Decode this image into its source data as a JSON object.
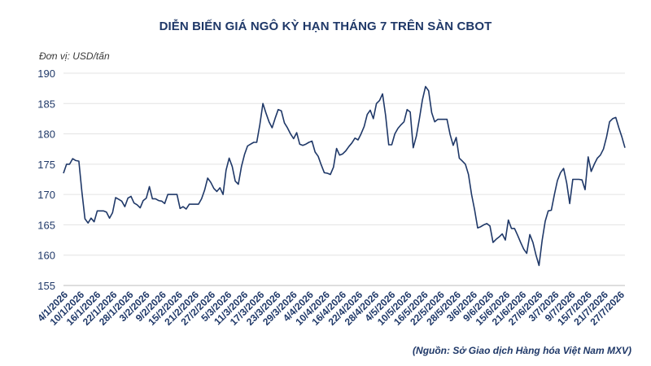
{
  "title": "DIỄN BIẾN GIÁ NGÔ KỲ HẠN THÁNG 7 TRÊN SÀN CBOT",
  "unit_label": "Đơn vị: USD/tấn",
  "source": "(Nguồn: Sở Giao dịch Hàng hóa Việt Nam MXV)",
  "colors": {
    "line": "#1f3868",
    "grid": "#e3e3e3",
    "text": "#1f3868"
  },
  "chart_data": {
    "type": "line",
    "title": "DIỄN BIẾN GIÁ NGÔ KỲ HẠN THÁNG 7 TRÊN SÀN CBOT",
    "ylabel": "Đơn vị: USD/tấn",
    "ylim": [
      155,
      190
    ],
    "yticks": [
      155,
      160,
      165,
      170,
      175,
      180,
      185,
      190
    ],
    "grid": true,
    "x_tick_labels": [
      "4/1/2026",
      "10/1/2026",
      "16/1/2026",
      "22/1/2026",
      "28/1/2026",
      "3/2/2026",
      "9/2/2026",
      "15/2/2026",
      "21/2/2026",
      "27/2/2026",
      "5/3/2026",
      "11/3/2026",
      "17/3/2026",
      "23/3/2026",
      "29/3/2026",
      "4/4/2026",
      "10/4/2026",
      "16/4/2026",
      "22/4/2026",
      "28/4/2026",
      "4/5/2026",
      "10/5/2026",
      "16/5/2026",
      "22/5/2026",
      "28/5/2026",
      "3/6/2026",
      "9/6/2026",
      "15/6/2026",
      "21/6/2026",
      "27/6/2026",
      "3/7/2026",
      "9/7/2026",
      "15/7/2026",
      "21/7/2026",
      "27/7/2026"
    ],
    "x_start": "4/1/2026",
    "x_end": "28/7/2026",
    "series": [
      {
        "values": [
          173.5,
          175.0,
          175.0,
          175.9,
          175.6,
          175.5,
          170.5,
          166.0,
          165.3,
          166.1,
          165.5,
          167.3,
          167.3,
          167.3,
          167.1,
          166.1,
          167.0,
          169.5,
          169.2,
          168.9,
          168.0,
          169.4,
          169.7,
          168.6,
          168.3,
          167.8,
          169.0,
          169.4,
          171.3,
          169.3,
          169.3,
          169.0,
          168.9,
          168.5,
          170.0,
          170.0,
          170.0,
          170.0,
          167.7,
          168.0,
          167.6,
          168.4,
          168.4,
          168.4,
          168.4,
          169.3,
          170.7,
          172.7,
          172.0,
          171.0,
          170.5,
          171.1,
          170.0,
          174.0,
          176.0,
          174.6,
          172.2,
          171.7,
          174.6,
          176.6,
          178.0,
          178.3,
          178.6,
          178.6,
          181.5,
          185.0,
          183.4,
          182.0,
          181.0,
          182.6,
          184.0,
          183.8,
          181.8,
          181.0,
          180.0,
          179.2,
          180.2,
          178.3,
          178.1,
          178.3,
          178.6,
          178.8,
          177.0,
          176.3,
          174.9,
          173.6,
          173.5,
          173.3,
          174.5,
          177.6,
          176.5,
          176.7,
          177.2,
          177.9,
          178.5,
          179.3,
          179.0,
          180.0,
          181.2,
          183.2,
          183.9,
          182.5,
          185.0,
          185.5,
          186.6,
          183.0,
          178.2,
          178.2,
          180.0,
          180.9,
          181.5,
          182.0,
          184.0,
          183.6,
          177.7,
          179.6,
          182.5,
          185.6,
          187.8,
          187.1,
          183.5,
          182.0,
          182.4,
          182.4,
          182.4,
          182.4,
          179.9,
          178.1,
          179.4,
          176.0,
          175.5,
          175.0,
          173.3,
          170.0,
          167.5,
          164.5,
          164.7,
          165.0,
          165.2,
          164.8,
          162.1,
          162.6,
          163.0,
          163.5,
          162.5,
          165.8,
          164.4,
          164.4,
          163.3,
          162.1,
          161.0,
          160.3,
          163.4,
          162.1,
          160.0,
          158.3,
          162.4,
          165.6,
          167.3,
          167.4,
          170.0,
          172.3,
          173.6,
          174.3,
          171.9,
          168.5,
          172.5,
          172.5,
          172.5,
          172.4,
          170.8,
          176.2,
          173.8,
          175.0,
          176.0,
          176.5,
          177.5,
          179.5,
          182.0,
          182.5,
          182.7,
          181.0,
          179.5,
          177.7
        ]
      }
    ]
  }
}
